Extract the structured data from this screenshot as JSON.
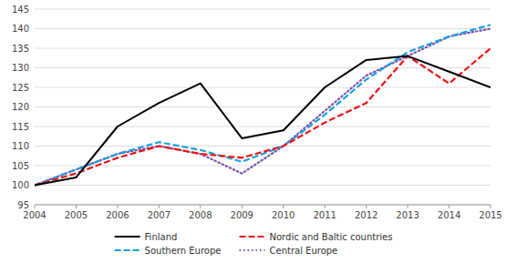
{
  "chart_data": {
    "type": "line",
    "x": [
      2004,
      2005,
      2006,
      2007,
      2008,
      2009,
      2010,
      2011,
      2012,
      2013,
      2014,
      2015
    ],
    "xlim": [
      2004,
      2015
    ],
    "xticks": [
      2004,
      2005,
      2006,
      2007,
      2008,
      2009,
      2010,
      2011,
      2012,
      2013,
      2014,
      2015
    ],
    "ylim": [
      95,
      145
    ],
    "yticks": [
      95,
      100,
      105,
      110,
      115,
      120,
      125,
      130,
      135,
      140,
      145
    ],
    "grid": true,
    "legend": "bottom",
    "series": [
      {
        "name": "Finland",
        "color": "#000000",
        "line_style": "solid",
        "values": [
          100,
          102,
          115,
          121,
          126,
          112,
          114,
          125,
          132,
          133,
          129,
          125
        ]
      },
      {
        "name": "Nordic and Baltic countries",
        "color": "#ee1111",
        "line_style": "dashed",
        "values": [
          100,
          103,
          107,
          110,
          108,
          107,
          110,
          116,
          121,
          133,
          126,
          135
        ]
      },
      {
        "name": "Southern Europe",
        "color": "#1a9ee0",
        "line_style": "dashed",
        "values": [
          100,
          104,
          108,
          111,
          109,
          106,
          110,
          118,
          127,
          134,
          138,
          141
        ]
      },
      {
        "name": "Central Europe",
        "color": "#7b52ab",
        "line_style": "dotted",
        "values": [
          100,
          104,
          108,
          110,
          108,
          103,
          110,
          119,
          128,
          133,
          138,
          140
        ]
      }
    ]
  }
}
